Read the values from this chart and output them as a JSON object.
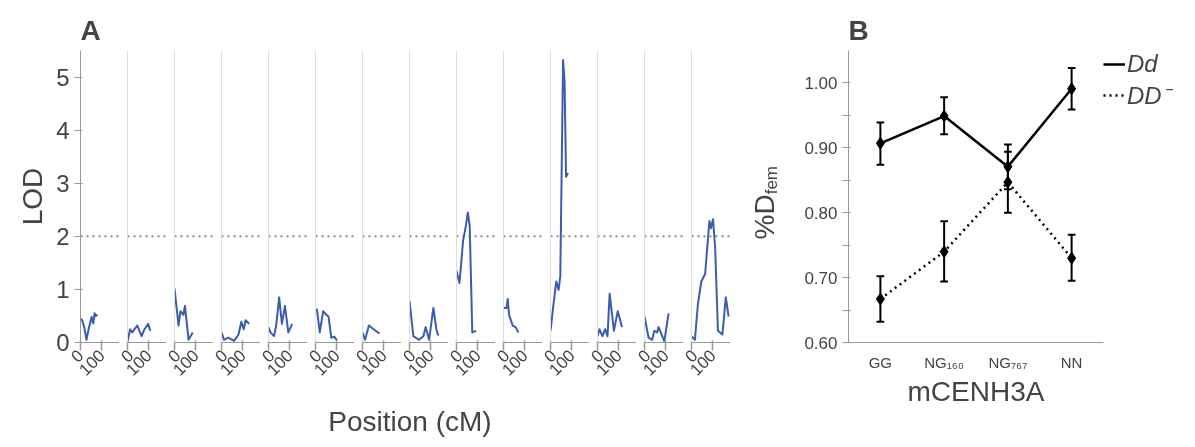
{
  "chart_data": [
    {
      "type": "line",
      "title": "A",
      "ylabel": "LOD",
      "annotations": [
        "Position (cM)"
      ],
      "xlim": [
        0,
        183
      ],
      "ylim": [
        0,
        5.5
      ],
      "yticks": [
        0,
        1,
        2,
        3,
        4,
        5
      ],
      "xticks": [
        0,
        100
      ],
      "ref_lines": [
        {
          "axis": "y",
          "value": 2,
          "color": "#8c8c8c",
          "line_style": "dotted"
        }
      ],
      "series": [
        {
          "color": "#3a5dae",
          "x": [
            0,
            8,
            18,
            28,
            38,
            52,
            60,
            66,
            72,
            80
          ],
          "values": [
            0.45,
            0.42,
            0.28,
            0.05,
            0.25,
            0.48,
            0.36,
            0.55,
            0.5,
            0.52
          ]
        }
      ]
    },
    {
      "type": "line",
      "tick_labels": "x",
      "xlim": [
        0,
        183
      ],
      "ylim": [
        0,
        5.5
      ],
      "xticks": [
        0,
        100
      ],
      "ref_lines": [
        {
          "axis": "y",
          "value": 2,
          "color": "#8c8c8c",
          "line_style": "dotted"
        }
      ],
      "series": [
        {
          "color": "#3a5dae",
          "x": [
            0,
            12,
            22,
            46,
            66,
            80,
            97,
            107
          ],
          "values": [
            0.02,
            0.25,
            0.19,
            0.32,
            0.12,
            0.25,
            0.35,
            0.22
          ]
        }
      ]
    },
    {
      "type": "line",
      "tick_labels": "x",
      "xlim": [
        0,
        183
      ],
      "ylim": [
        0,
        5.5
      ],
      "xticks": [
        0,
        100
      ],
      "ref_lines": [
        {
          "axis": "y",
          "value": 2,
          "color": "#8c8c8c",
          "line_style": "dotted"
        }
      ],
      "series": [
        {
          "color": "#3a5dae",
          "x": [
            0,
            19,
            28,
            42,
            49,
            66,
            80,
            86
          ],
          "values": [
            1.02,
            0.32,
            0.59,
            0.52,
            0.69,
            0.05,
            0.15,
            0.19
          ]
        }
      ]
    },
    {
      "type": "line",
      "tick_labels": "x",
      "xlim": [
        0,
        183
      ],
      "ylim": [
        0,
        5.5
      ],
      "xticks": [
        0,
        100
      ],
      "ref_lines": [
        {
          "axis": "y",
          "value": 2,
          "color": "#8c8c8c",
          "line_style": "dotted"
        }
      ],
      "series": [
        {
          "color": "#3a5dae",
          "x": [
            0,
            12,
            32,
            59,
            80,
            93,
            104,
            113,
            130
          ],
          "values": [
            0.19,
            0.05,
            0.09,
            0.03,
            0.15,
            0.39,
            0.25,
            0.42,
            0.35
          ]
        }
      ]
    },
    {
      "type": "line",
      "tick_labels": "x",
      "xlim": [
        0,
        183
      ],
      "ylim": [
        0,
        5.5
      ],
      "xticks": [
        0,
        100
      ],
      "ref_lines": [
        {
          "axis": "y",
          "value": 2,
          "color": "#8c8c8c",
          "line_style": "dotted"
        }
      ],
      "series": [
        {
          "color": "#3a5dae",
          "x": [
            0,
            9,
            26,
            36,
            50,
            63,
            77,
            93,
            111
          ],
          "values": [
            0.29,
            0.19,
            0.12,
            0.32,
            0.85,
            0.35,
            0.69,
            0.19,
            0.35
          ]
        }
      ]
    },
    {
      "type": "line",
      "tick_labels": "x",
      "xlim": [
        0,
        183
      ],
      "ylim": [
        0,
        5.5
      ],
      "xticks": [
        0,
        100
      ],
      "ref_lines": [
        {
          "axis": "y",
          "value": 2,
          "color": "#8c8c8c",
          "line_style": "dotted"
        }
      ],
      "series": [
        {
          "color": "#3a5dae",
          "x": [
            0,
            7,
            20,
            36,
            51,
            61,
            74,
            88,
            101
          ],
          "values": [
            0.62,
            0.62,
            0.19,
            0.59,
            0.52,
            0.49,
            0.09,
            0.11,
            0.04
          ]
        }
      ]
    },
    {
      "type": "line",
      "tick_labels": "x",
      "xlim": [
        0,
        183
      ],
      "ylim": [
        0,
        5.5
      ],
      "xticks": [
        0,
        100
      ],
      "ref_lines": [
        {
          "axis": "y",
          "value": 2,
          "color": "#8c8c8c",
          "line_style": "dotted"
        }
      ],
      "series": [
        {
          "color": "#3a5dae",
          "x": [
            0,
            12,
            30,
            46,
            62,
            80
          ],
          "values": [
            0.19,
            0.05,
            0.32,
            0.27,
            0.22,
            0.17
          ]
        }
      ]
    },
    {
      "type": "line",
      "tick_labels": "x",
      "xlim": [
        0,
        183
      ],
      "ylim": [
        0,
        5.5
      ],
      "xticks": [
        0,
        100
      ],
      "ref_lines": [
        {
          "axis": "y",
          "value": 2,
          "color": "#8c8c8c",
          "line_style": "dotted"
        }
      ],
      "series": [
        {
          "color": "#3a5dae",
          "x": [
            0,
            18,
            45,
            65,
            76,
            92,
            112,
            126,
            135
          ],
          "values": [
            0.79,
            0.12,
            0.05,
            0.12,
            0.29,
            0.05,
            0.65,
            0.25,
            0.13
          ]
        }
      ]
    },
    {
      "type": "line",
      "tick_labels": "x",
      "xlim": [
        0,
        183
      ],
      "ylim": [
        0,
        5.5
      ],
      "xticks": [
        0,
        100
      ],
      "ref_lines": [
        {
          "axis": "y",
          "value": 2,
          "color": "#8c8c8c",
          "line_style": "dotted"
        }
      ],
      "series": [
        {
          "color": "#3a5dae",
          "x": [
            0,
            14,
            31,
            45,
            53,
            62,
            74,
            92
          ],
          "values": [
            1.35,
            1.12,
            1.92,
            2.22,
            2.45,
            2.19,
            0.19,
            0.22
          ]
        }
      ]
    },
    {
      "type": "line",
      "tick_labels": "x",
      "xlim": [
        0,
        183
      ],
      "ylim": [
        0,
        5.5
      ],
      "xticks": [
        0,
        100
      ],
      "ref_lines": [
        {
          "axis": "y",
          "value": 2,
          "color": "#8c8c8c",
          "line_style": "dotted"
        }
      ],
      "series": [
        {
          "color": "#3a5dae",
          "x": [
            0,
            14,
            20,
            26,
            43,
            57,
            70
          ],
          "values": [
            0.65,
            0.65,
            0.82,
            0.52,
            0.32,
            0.29,
            0.19
          ]
        }
      ]
    },
    {
      "type": "line",
      "tick_labels": "x",
      "xlim": [
        0,
        183
      ],
      "ylim": [
        0,
        5.5
      ],
      "xticks": [
        0,
        100
      ],
      "ref_lines": [
        {
          "axis": "y",
          "value": 2,
          "color": "#8c8c8c",
          "line_style": "dotted"
        }
      ],
      "series": [
        {
          "color": "#3a5dae",
          "x": [
            0,
            12,
            27,
            38,
            46,
            59,
            66,
            73,
            82
          ],
          "values": [
            0.22,
            0.65,
            1.15,
            0.99,
            1.25,
            5.32,
            4.92,
            3.12,
            3.19
          ]
        }
      ]
    },
    {
      "type": "line",
      "tick_labels": "x",
      "xlim": [
        0,
        183
      ],
      "ylim": [
        0,
        5.5
      ],
      "xticks": [
        0,
        100
      ],
      "ref_lines": [
        {
          "axis": "y",
          "value": 2,
          "color": "#8c8c8c",
          "line_style": "dotted"
        }
      ],
      "series": [
        {
          "color": "#3a5dae",
          "x": [
            0,
            9,
            23,
            36,
            47,
            57,
            77,
            95,
            115
          ],
          "values": [
            0.12,
            0.25,
            0.12,
            0.25,
            0.12,
            0.92,
            0.22,
            0.59,
            0.29
          ]
        }
      ]
    },
    {
      "type": "line",
      "tick_labels": "x",
      "xlim": [
        0,
        183
      ],
      "ylim": [
        0,
        5.5
      ],
      "xticks": [
        0,
        100
      ],
      "ref_lines": [
        {
          "axis": "y",
          "value": 2,
          "color": "#8c8c8c",
          "line_style": "dotted"
        }
      ],
      "series": [
        {
          "color": "#3a5dae",
          "x": [
            0,
            19,
            36,
            46,
            59,
            66,
            86,
            93,
            113
          ],
          "values": [
            0.49,
            0.09,
            0.05,
            0.22,
            0.19,
            0.29,
            0.09,
            0.02,
            0.55
          ]
        }
      ]
    },
    {
      "type": "line",
      "tick_labels": "x",
      "xlim": [
        0,
        183
      ],
      "ylim": [
        0,
        5.5
      ],
      "xticks": [
        0,
        100
      ],
      "ref_lines": [
        {
          "axis": "y",
          "value": 2,
          "color": "#8c8c8c",
          "line_style": "dotted"
        }
      ],
      "series": [
        {
          "color": "#3a5dae",
          "x": [
            0,
            16,
            30,
            46,
            64,
            84,
            91,
            101,
            111,
            124,
            145,
            161,
            174
          ],
          "values": [
            0.12,
            0.05,
            0.72,
            1.15,
            1.29,
            2.29,
            2.15,
            2.32,
            1.79,
            0.22,
            0.15,
            0.85,
            0.49
          ]
        }
      ]
    },
    {
      "type": "line",
      "title": "B",
      "xlabel": "mCENH3A",
      "ylabel": "%D$_{fem}$",
      "categories": [
        "GG",
        "NG₁₆₀",
        "NG₇₆₇",
        "NN"
      ],
      "ylim": [
        0.6,
        1.05
      ],
      "yticks": [
        {
          "value": 0.6,
          "label": "0.60"
        },
        {
          "value": 0.65,
          "label": null
        },
        {
          "value": 0.7,
          "label": "0.70"
        },
        {
          "value": 0.75,
          "label": null
        },
        {
          "value": 0.8,
          "label": "0.80"
        },
        {
          "value": 0.85,
          "label": null
        },
        {
          "value": 0.9,
          "label": "0.90"
        },
        {
          "value": 0.95,
          "label": null
        },
        {
          "value": 1.0,
          "label": "1.00"
        }
      ],
      "legend": "top right",
      "marker": "diamond",
      "series": [
        {
          "name": "Dd",
          "color": "#000000",
          "line_style": "solid",
          "values": [
            0.907,
            0.949,
            0.871,
            0.991
          ],
          "errors": [
            [
              0.874,
              0.939
            ],
            [
              0.921,
              0.978
            ],
            [
              0.836,
              0.905
            ],
            [
              0.959,
              1.023
            ]
          ]
        },
        {
          "name": "DD⁻",
          "color": "#000000",
          "line_style": "dotted",
          "values": [
            0.667,
            0.74,
            0.847,
            0.73
          ],
          "errors": [
            [
              0.632,
              0.702
            ],
            [
              0.694,
              0.787
            ],
            [
              0.8,
              0.894
            ],
            [
              0.695,
              0.766
            ]
          ]
        }
      ]
    }
  ]
}
